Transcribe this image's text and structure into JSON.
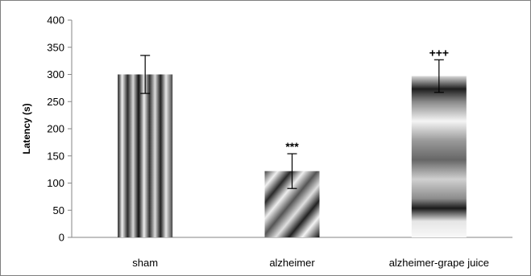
{
  "chart_data": {
    "type": "bar",
    "title": "",
    "xlabel": "",
    "ylabel": "Latency (s)",
    "ylim": [
      0,
      400
    ],
    "yticks": [
      0,
      50,
      100,
      150,
      200,
      250,
      300,
      350,
      400
    ],
    "grid": false,
    "categories": [
      "sham",
      "alzheimer",
      "alzheimer-grape juice"
    ],
    "values": [
      300,
      122,
      297
    ],
    "errors": [
      35,
      32,
      30
    ],
    "annotations": [
      "",
      "***",
      "+++"
    ]
  }
}
